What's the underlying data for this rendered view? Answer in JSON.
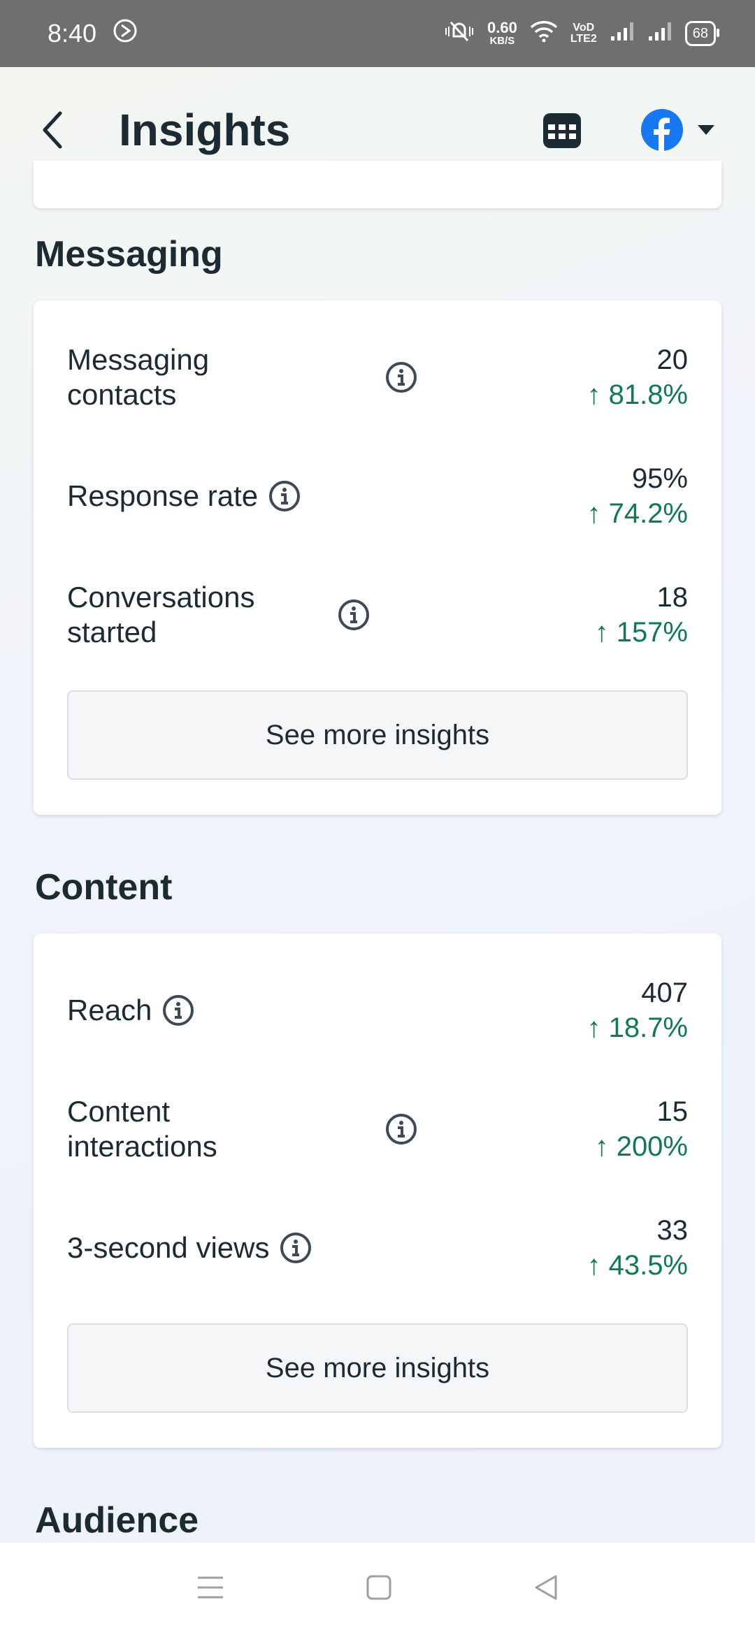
{
  "status_bar": {
    "time": "8:40",
    "speed_value": "0.60",
    "speed_unit": "KB/S",
    "network_label_top": "VoD",
    "network_label_bottom": "LTE2",
    "battery": "68"
  },
  "header": {
    "title": "Insights",
    "calendar_icon": "calendar-icon",
    "account_icon": "facebook-icon"
  },
  "sections": {
    "messaging": {
      "title": "Messaging",
      "metrics": [
        {
          "label_line1": "Messaging",
          "label_line2": "contacts",
          "value": "20",
          "change": "↑ 81.8%"
        },
        {
          "label": "Response rate",
          "value": "95%",
          "change": "↑ 74.2%"
        },
        {
          "label_line1": "Conversations",
          "label_line2": "started",
          "value": "18",
          "change": "↑ 157%"
        }
      ],
      "see_more": "See more insights"
    },
    "content": {
      "title": "Content",
      "metrics": [
        {
          "label": "Reach",
          "value": "407",
          "change": "↑ 18.7%"
        },
        {
          "label_line1": "Content",
          "label_line2": "interactions",
          "value": "15",
          "change": "↑ 200%"
        },
        {
          "label": "3-second views",
          "value": "33",
          "change": "↑ 43.5%"
        }
      ],
      "see_more": "See more insights"
    },
    "audience": {
      "title": "Audience"
    }
  },
  "colors": {
    "positive_change": "#0e7a4e",
    "facebook_blue": "#1877f2",
    "text_primary": "#1c2b33"
  }
}
